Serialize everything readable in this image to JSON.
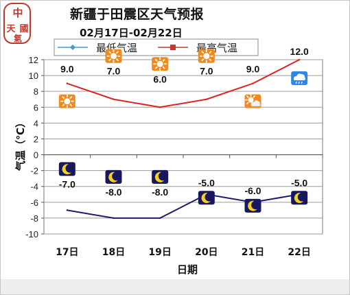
{
  "header": {
    "title": "新疆于田震区天气预报",
    "date_range": "02月17日-02月22日",
    "logo_chars": [
      "中",
      "國",
      "天",
      "氣"
    ]
  },
  "chart_data": {
    "type": "line",
    "categories": [
      "17日",
      "18日",
      "19日",
      "20日",
      "21日",
      "22日"
    ],
    "xlabel": "日期",
    "ylabel": "气温（℃）",
    "ylim": [
      -10,
      12
    ],
    "yticks": [
      12,
      10,
      8,
      6,
      4,
      2,
      0,
      -2,
      -4,
      -6,
      -8,
      -10
    ],
    "grid": true,
    "legend_position": "top",
    "series": [
      {
        "name": "最低气温",
        "legend_color": "#3b9ad0",
        "color": "#1a1a6e",
        "values": [
          -7.0,
          -8.0,
          -8.0,
          -5.0,
          -6.0,
          -5.0
        ],
        "labels": [
          "-7.0",
          "-8.0",
          "-8.0",
          "-5.0",
          "-6.0",
          "-5.0"
        ],
        "icons": [
          "moon-icon",
          "moon-icon",
          "moon-icon",
          "moon-icon",
          "moon-icon",
          "moon-icon"
        ]
      },
      {
        "name": "最高气温",
        "legend_color": "#c0392b",
        "color": "#dd2222",
        "values": [
          9.0,
          7.0,
          6.0,
          7.0,
          9.0,
          12.0
        ],
        "labels": [
          "9.0",
          "7.0",
          "6.0",
          "7.0",
          "9.0",
          "12.0"
        ],
        "icons": [
          "sun-icon",
          "sun-icon",
          "sun-icon",
          "sun-icon",
          "partly-cloudy-icon",
          "rain-cloud-icon"
        ]
      }
    ]
  },
  "colors": {
    "sun_tile": "#f08a1e",
    "moon_tile": "#18185e",
    "rain_tile": "#2f86e8"
  }
}
